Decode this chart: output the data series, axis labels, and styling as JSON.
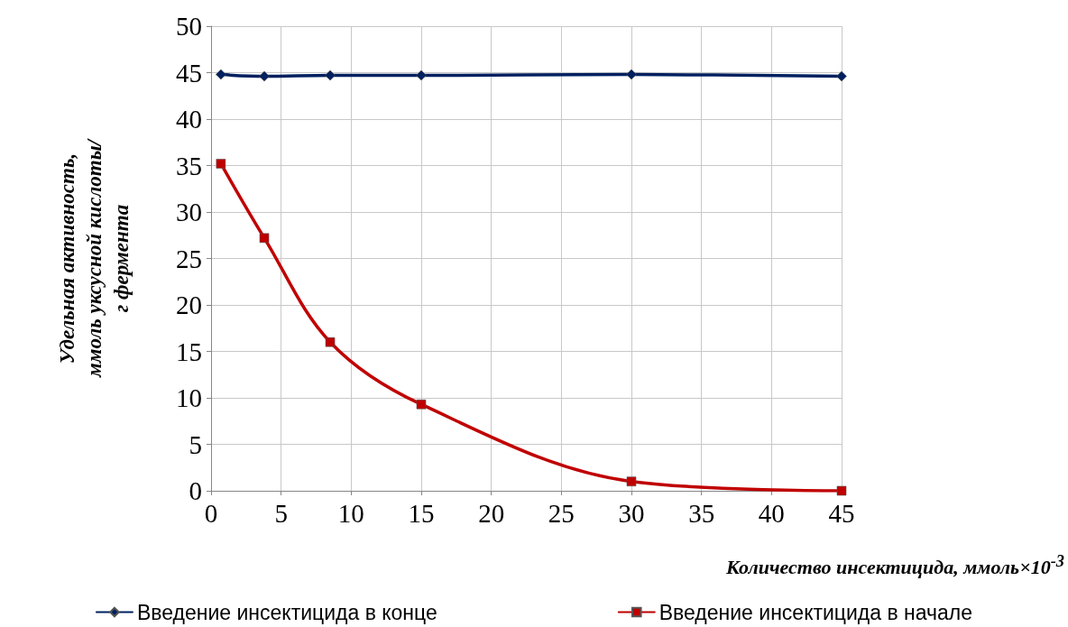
{
  "chart_data": {
    "type": "line",
    "xlabel": "Количество инсектицида, ммоль×10$^{-3}$",
    "ylabel": "Удельная активность,\nммоль уксусной кислоты/\nг фермента",
    "x": [
      0.7,
      3.8,
      8.5,
      15,
      30,
      45
    ],
    "series": [
      {
        "name": "Введение инсектицида в конце",
        "color": "#002060",
        "marker": "diamond",
        "values": [
          44.8,
          44.6,
          44.7,
          44.7,
          44.8,
          44.6
        ]
      },
      {
        "name": "Введение инсектицида в начале",
        "color": "#c00000",
        "marker": "square",
        "values": [
          35.2,
          27.2,
          16.0,
          9.3,
          1.0,
          0
        ]
      }
    ],
    "xlim": [
      0,
      45
    ],
    "xticks": [
      0,
      5,
      10,
      15,
      20,
      25,
      30,
      35,
      40,
      45
    ],
    "ylim": [
      0,
      50
    ],
    "yticks": [
      0,
      5,
      10,
      15,
      20,
      25,
      30,
      35,
      40,
      45,
      50
    ],
    "grid": true,
    "legend": "bottom",
    "line_style": "solid"
  }
}
